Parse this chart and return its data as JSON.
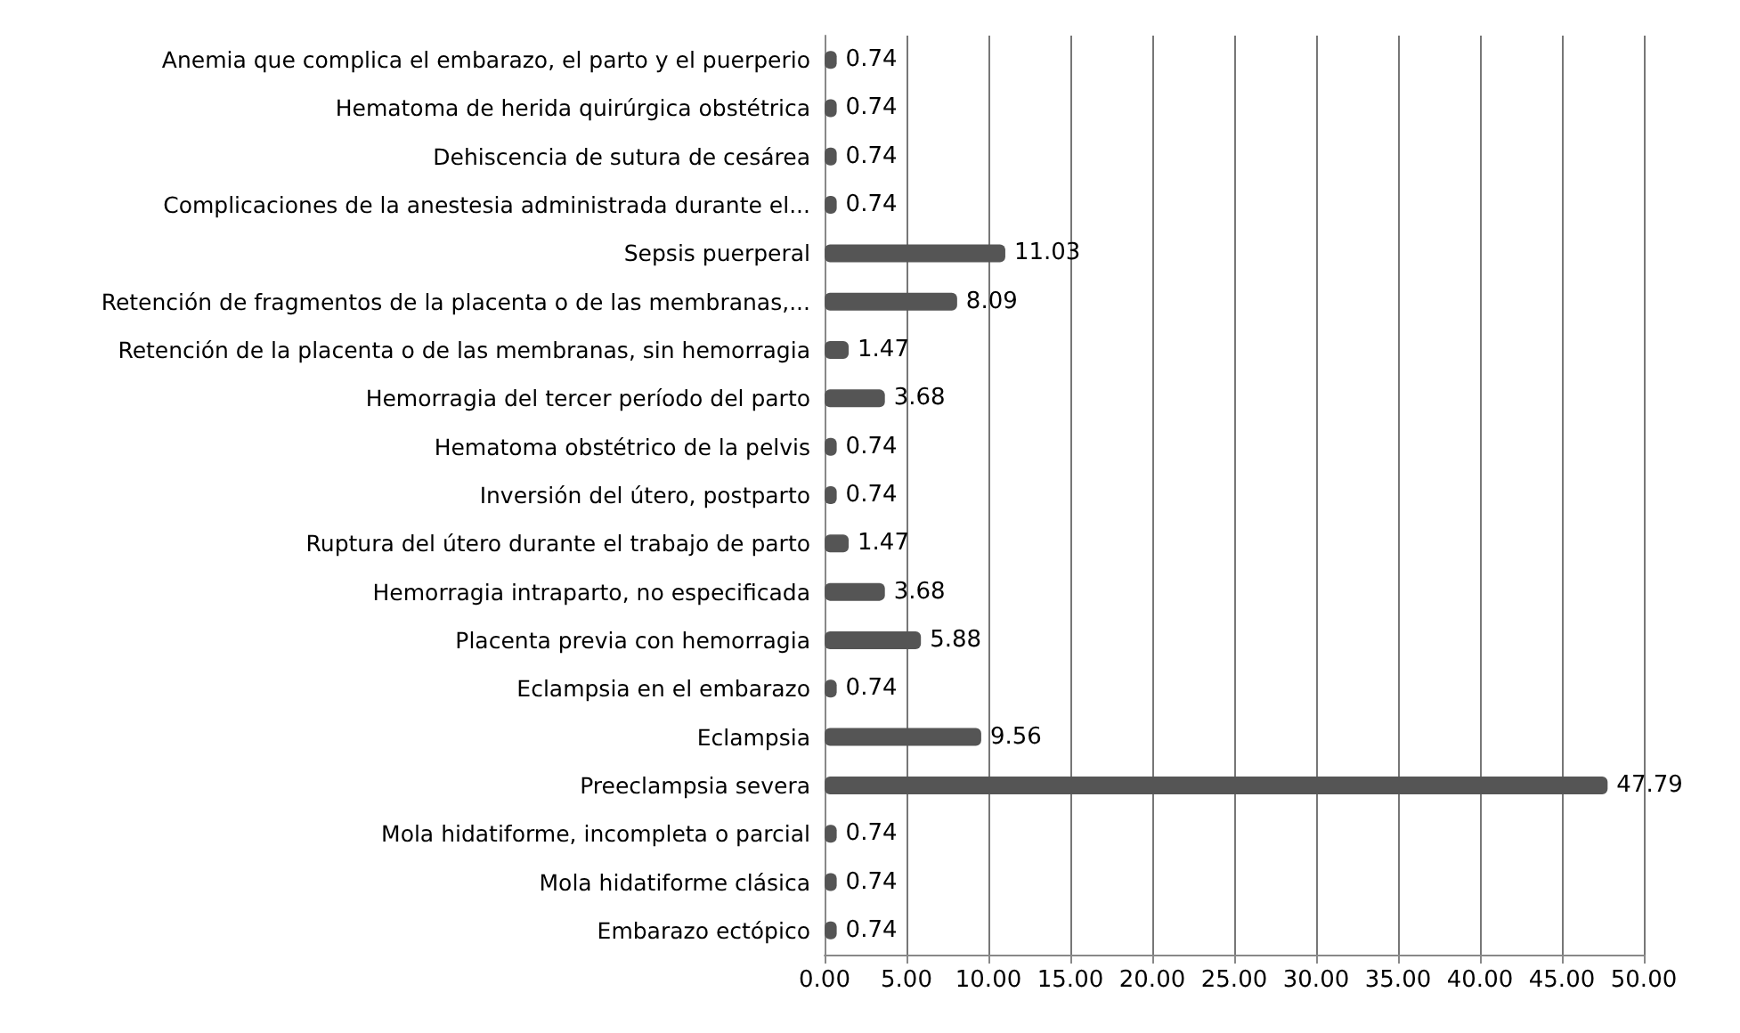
{
  "chart_data": {
    "type": "bar",
    "orientation": "horizontal",
    "categories": [
      "Anemia que complica el embarazo, el parto y el puerperio",
      "Hematoma de herida quirúrgica obstétrica",
      "Dehiscencia de sutura de cesárea",
      "Complicaciones de la anestesia administrada durante el...",
      "Sepsis puerperal",
      "Retención de fragmentos de la placenta o de las membranas,...",
      "Retención de la placenta o de las membranas, sin hemorragia",
      "Hemorragia del tercer período del parto",
      "Hematoma obstétrico de la pelvis",
      "Inversión del útero, postparto",
      "Ruptura del útero durante el trabajo de parto",
      "Hemorragia intraparto, no especificada",
      "Placenta previa con hemorragia",
      "Eclampsia en el embarazo",
      "Eclampsia",
      "Preeclampsia severa",
      "Mola hidatiforme, incompleta o parcial",
      "Mola hidatiforme clásica",
      "Embarazo ectópico"
    ],
    "values": [
      0.74,
      0.74,
      0.74,
      0.74,
      11.03,
      8.09,
      1.47,
      3.68,
      0.74,
      0.74,
      1.47,
      3.68,
      5.88,
      0.74,
      9.56,
      47.79,
      0.74,
      0.74,
      0.74
    ],
    "color": "#555555",
    "xlim": [
      0,
      50
    ],
    "xticks": [
      {
        "value": 0,
        "label": "0.00"
      },
      {
        "value": 5,
        "label": "5.00"
      },
      {
        "value": 10,
        "label": "10.00"
      },
      {
        "value": 15,
        "label": "15.00"
      },
      {
        "value": 20,
        "label": "20.00"
      },
      {
        "value": 25,
        "label": "25.00"
      },
      {
        "value": 30,
        "label": "30.00"
      },
      {
        "value": 35,
        "label": "35.00"
      },
      {
        "value": 40,
        "label": "40.00"
      },
      {
        "value": 45,
        "label": "45.00"
      },
      {
        "value": 50,
        "label": "50.00"
      }
    ],
    "grid": "x",
    "data_labels": true
  }
}
